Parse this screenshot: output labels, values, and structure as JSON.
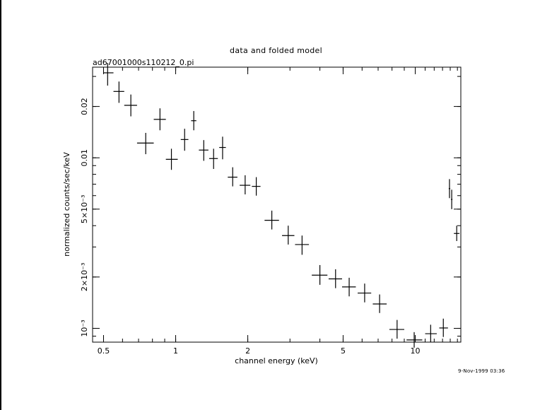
{
  "chart_data": {
    "type": "scatter",
    "title": "data and folded model",
    "subtitle": "ad67001000s110212_0.pi",
    "xlabel": "channel energy (keV)",
    "ylabel": "normalized counts/sec/keV",
    "x_scale": "log",
    "y_scale": "log",
    "xlim": [
      0.45,
      15.5
    ],
    "ylim": [
      0.00083,
      0.034
    ],
    "x_ticks": [
      {
        "value": 0.5,
        "label": "0.5"
      },
      {
        "value": 1,
        "label": "1"
      },
      {
        "value": 2,
        "label": "2"
      },
      {
        "value": 5,
        "label": "5"
      },
      {
        "value": 10,
        "label": "10"
      }
    ],
    "y_ticks": [
      {
        "value": 0.001,
        "label": "10⁻³"
      },
      {
        "value": 0.002,
        "label": "2×10⁻³"
      },
      {
        "value": 0.005,
        "label": "5×10⁻³"
      },
      {
        "value": 0.01,
        "label": "0.01"
      },
      {
        "value": 0.02,
        "label": "0.02"
      }
    ],
    "grid": false,
    "series": [
      {
        "marker": "cross-with-error-bars",
        "points": [
          {
            "x": 0.52,
            "xerr": [
              0.5,
              0.55
            ],
            "y": 0.0315,
            "yerr": [
              0.0265,
              0.036
            ]
          },
          {
            "x": 0.58,
            "xerr": [
              0.55,
              0.61
            ],
            "y": 0.0245,
            "yerr": [
              0.021,
              0.028
            ]
          },
          {
            "x": 0.65,
            "xerr": [
              0.61,
              0.69
            ],
            "y": 0.0203,
            "yerr": [
              0.0175,
              0.0235
            ]
          },
          {
            "x": 0.75,
            "xerr": [
              0.69,
              0.81
            ],
            "y": 0.0122,
            "yerr": [
              0.0105,
              0.014
            ]
          },
          {
            "x": 0.86,
            "xerr": [
              0.81,
              0.91
            ],
            "y": 0.0168,
            "yerr": [
              0.0145,
              0.0195
            ]
          },
          {
            "x": 0.96,
            "xerr": [
              0.91,
              1.02
            ],
            "y": 0.0098,
            "yerr": [
              0.0085,
              0.0113
            ]
          },
          {
            "x": 1.09,
            "xerr": [
              1.05,
              1.13
            ],
            "y": 0.0128,
            "yerr": [
              0.011,
              0.0148
            ]
          },
          {
            "x": 1.19,
            "xerr": [
              1.16,
              1.22
            ],
            "y": 0.0165,
            "yerr": [
              0.0145,
              0.0188
            ]
          },
          {
            "x": 1.31,
            "xerr": [
              1.25,
              1.37
            ],
            "y": 0.0111,
            "yerr": [
              0.0096,
              0.0127
            ]
          },
          {
            "x": 1.44,
            "xerr": [
              1.38,
              1.5
            ],
            "y": 0.0099,
            "yerr": [
              0.0086,
              0.0113
            ]
          },
          {
            "x": 1.57,
            "xerr": [
              1.52,
              1.62
            ],
            "y": 0.0115,
            "yerr": [
              0.0098,
              0.0133
            ]
          },
          {
            "x": 1.73,
            "xerr": [
              1.65,
              1.81
            ],
            "y": 0.0077,
            "yerr": [
              0.0068,
              0.0088
            ]
          },
          {
            "x": 1.95,
            "xerr": [
              1.85,
              2.05
            ],
            "y": 0.0069,
            "yerr": [
              0.0061,
              0.0079
            ]
          },
          {
            "x": 2.17,
            "xerr": [
              2.08,
              2.26
            ],
            "y": 0.0068,
            "yerr": [
              0.006,
              0.0077
            ]
          },
          {
            "x": 2.52,
            "xerr": [
              2.35,
              2.7
            ],
            "y": 0.0043,
            "yerr": [
              0.0038,
              0.0049
            ]
          },
          {
            "x": 2.95,
            "xerr": [
              2.78,
              3.13
            ],
            "y": 0.0035,
            "yerr": [
              0.0031,
              0.004
            ]
          },
          {
            "x": 3.37,
            "xerr": [
              3.15,
              3.6
            ],
            "y": 0.0031,
            "yerr": [
              0.0027,
              0.0035
            ]
          },
          {
            "x": 4.0,
            "xerr": [
              3.7,
              4.3
            ],
            "y": 0.00205,
            "yerr": [
              0.0018,
              0.00235
            ]
          },
          {
            "x": 4.65,
            "xerr": [
              4.35,
              4.95
            ],
            "y": 0.00195,
            "yerr": [
              0.00172,
              0.00222
            ]
          },
          {
            "x": 5.3,
            "xerr": [
              4.95,
              5.65
            ],
            "y": 0.00175,
            "yerr": [
              0.00154,
              0.00198
            ]
          },
          {
            "x": 6.15,
            "xerr": [
              5.75,
              6.55
            ],
            "y": 0.00161,
            "yerr": [
              0.00142,
              0.00183
            ]
          },
          {
            "x": 7.1,
            "xerr": [
              6.65,
              7.6
            ],
            "y": 0.00139,
            "yerr": [
              0.00123,
              0.00158
            ]
          },
          {
            "x": 8.4,
            "xerr": [
              7.8,
              9.0
            ],
            "y": 0.000985,
            "yerr": [
              0.00087,
              0.00112
            ]
          },
          {
            "x": 9.9,
            "xerr": [
              9.2,
              10.7
            ],
            "y": 0.000855,
            "yerr": [
              0.00077,
              0.00095
            ]
          },
          {
            "x": 11.6,
            "xerr": [
              11.0,
              12.3
            ],
            "y": 0.00093,
            "yerr": [
              0.00083,
              0.00105
            ]
          },
          {
            "x": 13.1,
            "xerr": [
              12.6,
              13.7
            ],
            "y": 0.001005,
            "yerr": [
              0.00089,
              0.00114
            ]
          },
          {
            "x": 13.9,
            "xerr": [
              13.8,
              14.0
            ],
            "y": 0.0066,
            "yerr": [
              0.0058,
              0.0075
            ]
          },
          {
            "x": 14.2,
            "xerr": [
              14.1,
              14.3
            ],
            "y": 0.0057,
            "yerr": [
              0.005,
              0.0065
            ]
          },
          {
            "x": 14.9,
            "xerr": [
              14.5,
              15.3
            ],
            "y": 0.0036,
            "yerr": [
              0.00325,
              0.004
            ]
          }
        ]
      }
    ]
  },
  "footer": {
    "timestamp": "9-Nov-1999 03:36"
  }
}
